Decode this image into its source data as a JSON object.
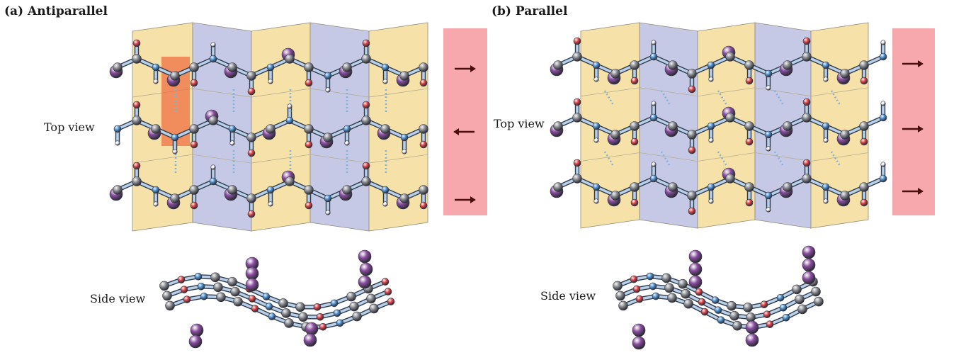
{
  "panels": [
    {
      "title": "(a) Antiparallel",
      "top_view_label": "Top view",
      "side_view_label": "Side view",
      "strand_directions": [
        "right",
        "left",
        "right"
      ]
    },
    {
      "title": "(b) Parallel",
      "top_view_label": "Top view",
      "side_view_label": "Side view",
      "strand_directions": [
        "right",
        "right",
        "right"
      ]
    }
  ],
  "colors": {
    "sheet_yellow": "#f6e2a8",
    "sheet_blue": "#c6c9e6",
    "arrow_box": "#f7a8ac",
    "arrow": "#4a0e0e",
    "carbon": "#8a8d92",
    "nitrogen": "#4f96d6",
    "oxygen": "#e0454a",
    "hydrogen": "#ffffff",
    "r_group": "#8a4da0",
    "h_bond": "#7fb2dd",
    "highlight": "#f06a3c"
  }
}
